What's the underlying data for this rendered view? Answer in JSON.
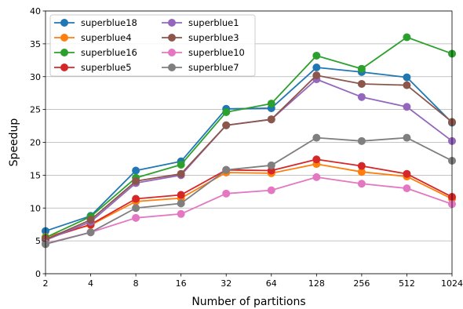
{
  "chart_data": {
    "type": "line",
    "xlabel": "Number of partitions",
    "ylabel": "Speedup",
    "x": [
      "2",
      "4",
      "8",
      "16",
      "32",
      "64",
      "128",
      "256",
      "512",
      "1024"
    ],
    "x_scale": "log2",
    "ylim": [
      0,
      40
    ],
    "yticks": [
      "0",
      "5",
      "10",
      "15",
      "20",
      "25",
      "30",
      "35",
      "40"
    ],
    "grid": "horizontal",
    "legend": {
      "position": "top-left",
      "columns": 2
    },
    "series": [
      {
        "name": "superblue18",
        "color": "#1f77b4",
        "values": [
          6.5,
          8.8,
          15.7,
          17.1,
          25.1,
          25.2,
          31.4,
          30.7,
          29.9,
          23.0
        ]
      },
      {
        "name": "superblue4",
        "color": "#ff7f0e",
        "values": [
          5.6,
          7.4,
          11.0,
          11.5,
          15.4,
          15.3,
          16.7,
          15.5,
          14.8,
          11.4
        ]
      },
      {
        "name": "superblue16",
        "color": "#2ca02c",
        "values": [
          5.5,
          8.7,
          14.6,
          16.6,
          24.6,
          25.9,
          33.2,
          31.2,
          36.0,
          33.5
        ]
      },
      {
        "name": "superblue5",
        "color": "#d62728",
        "values": [
          5.3,
          7.5,
          11.4,
          12.0,
          15.8,
          15.7,
          17.4,
          16.4,
          15.2,
          11.7
        ]
      },
      {
        "name": "superblue1",
        "color": "#9467bd",
        "values": [
          5.1,
          7.9,
          13.8,
          15.0,
          22.6,
          23.5,
          29.6,
          26.9,
          25.4,
          20.2
        ]
      },
      {
        "name": "superblue3",
        "color": "#8c564b",
        "values": [
          5.2,
          8.2,
          14.1,
          15.2,
          22.6,
          23.5,
          30.2,
          28.9,
          28.7,
          23.1
        ]
      },
      {
        "name": "superblue10",
        "color": "#e377c2",
        "values": [
          4.6,
          6.3,
          8.5,
          9.1,
          12.2,
          12.7,
          14.7,
          13.7,
          13.0,
          10.6
        ]
      },
      {
        "name": "superblue7",
        "color": "#7f7f7f",
        "values": [
          4.5,
          6.3,
          10.0,
          10.7,
          15.8,
          16.5,
          20.7,
          20.2,
          20.7,
          17.2
        ]
      }
    ]
  }
}
